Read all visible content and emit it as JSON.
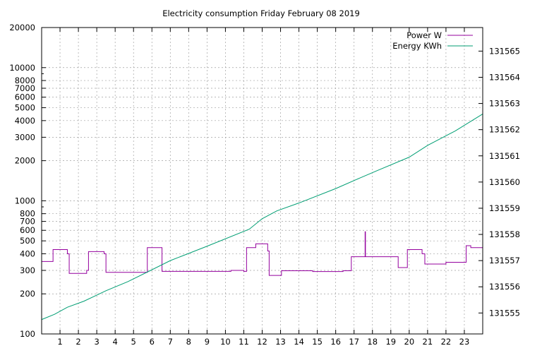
{
  "chart_data": {
    "type": "line",
    "title": "Electricity consumption Friday February 08 2019",
    "xlabel": "",
    "ylabel": "",
    "xlim": [
      0,
      24
    ],
    "x_ticks": [
      1,
      2,
      3,
      4,
      5,
      6,
      7,
      8,
      9,
      10,
      11,
      12,
      13,
      14,
      15,
      16,
      17,
      18,
      19,
      20,
      21,
      22,
      23
    ],
    "y_left": {
      "scale": "log",
      "range": [
        100,
        20000
      ],
      "ticks": [
        100,
        200,
        300,
        400,
        500,
        600,
        700,
        800,
        1000,
        2000,
        3000,
        4000,
        5000,
        6000,
        7000,
        8000,
        10000,
        20000
      ]
    },
    "y_right": {
      "scale": "linear",
      "range": [
        131554.2,
        131565.9
      ],
      "ticks": [
        131555,
        131556,
        131557,
        131558,
        131559,
        131560,
        131561,
        131562,
        131563,
        131564,
        131565
      ]
    },
    "grid": true,
    "legend_position": "top-right",
    "series": [
      {
        "name": "Power W",
        "color": "#94009e",
        "axis": "left",
        "step": true,
        "points": [
          [
            0,
            350
          ],
          [
            0.62,
            350
          ],
          [
            0.62,
            430
          ],
          [
            1.4,
            430
          ],
          [
            1.4,
            400
          ],
          [
            1.5,
            400
          ],
          [
            1.5,
            285
          ],
          [
            2.45,
            285
          ],
          [
            2.45,
            300
          ],
          [
            2.55,
            300
          ],
          [
            2.55,
            415
          ],
          [
            3.4,
            415
          ],
          [
            3.4,
            400
          ],
          [
            3.5,
            400
          ],
          [
            3.5,
            290
          ],
          [
            5.75,
            290
          ],
          [
            5.75,
            445
          ],
          [
            6.55,
            445
          ],
          [
            6.55,
            295
          ],
          [
            10.3,
            295
          ],
          [
            10.3,
            300
          ],
          [
            11.0,
            300
          ],
          [
            11.0,
            295
          ],
          [
            11.15,
            295
          ],
          [
            11.15,
            445
          ],
          [
            11.65,
            445
          ],
          [
            11.65,
            475
          ],
          [
            12.3,
            475
          ],
          [
            12.3,
            420
          ],
          [
            12.38,
            420
          ],
          [
            12.38,
            275
          ],
          [
            13.05,
            275
          ],
          [
            13.05,
            298
          ],
          [
            14.75,
            298
          ],
          [
            14.75,
            294
          ],
          [
            16.4,
            294
          ],
          [
            16.4,
            298
          ],
          [
            16.85,
            298
          ],
          [
            16.85,
            380
          ],
          [
            17.6,
            380
          ],
          [
            17.6,
            585
          ],
          [
            17.62,
            585
          ],
          [
            17.62,
            380
          ],
          [
            19.4,
            380
          ],
          [
            19.4,
            315
          ],
          [
            19.9,
            315
          ],
          [
            19.9,
            430
          ],
          [
            20.7,
            430
          ],
          [
            20.7,
            400
          ],
          [
            20.85,
            400
          ],
          [
            20.85,
            335
          ],
          [
            22.0,
            335
          ],
          [
            22.0,
            345
          ],
          [
            23.1,
            345
          ],
          [
            23.1,
            460
          ],
          [
            23.35,
            460
          ],
          [
            23.35,
            445
          ],
          [
            24,
            445
          ]
        ]
      },
      {
        "name": "Energy KWh",
        "color": "#009e73",
        "axis": "right",
        "step": false,
        "points": [
          [
            0,
            131554.75
          ],
          [
            0.7,
            131554.95
          ],
          [
            1.4,
            131555.22
          ],
          [
            2.3,
            131555.45
          ],
          [
            3.5,
            131555.85
          ],
          [
            4.7,
            131556.2
          ],
          [
            6.0,
            131556.65
          ],
          [
            7.0,
            131557.0
          ],
          [
            9.0,
            131557.55
          ],
          [
            11.3,
            131558.2
          ],
          [
            12.0,
            131558.6
          ],
          [
            12.8,
            131558.9
          ],
          [
            14.0,
            131559.2
          ],
          [
            16.0,
            131559.75
          ],
          [
            17.3,
            131560.15
          ],
          [
            18.3,
            131560.45
          ],
          [
            20.0,
            131560.95
          ],
          [
            21.0,
            131561.4
          ],
          [
            22.5,
            131561.95
          ],
          [
            24,
            131562.6
          ]
        ]
      }
    ]
  }
}
